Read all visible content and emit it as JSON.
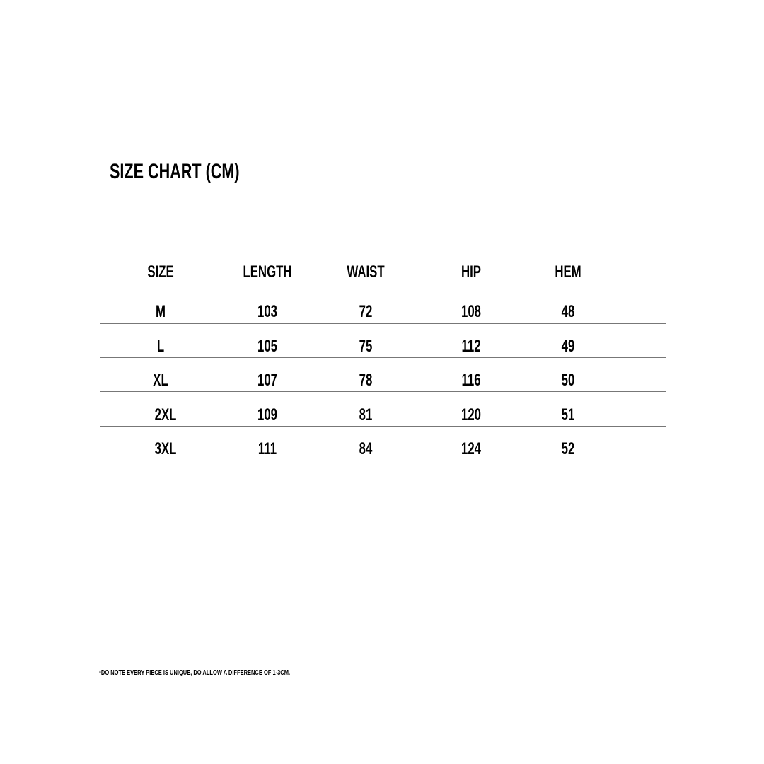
{
  "title": "SIZE CHART (CM)",
  "table": {
    "headers": [
      "SIZE",
      "LENGTH",
      "WAIST",
      "HIP",
      "HEM"
    ],
    "rows": [
      [
        "M",
        "103",
        "72",
        "108",
        "48"
      ],
      [
        "L",
        "105",
        "75",
        "112",
        "49"
      ],
      [
        "XL",
        "107",
        "78",
        "116",
        "50"
      ],
      [
        "2XL",
        "109",
        "81",
        "120",
        "51"
      ],
      [
        "3XL",
        "111",
        "84",
        "124",
        "52"
      ]
    ]
  },
  "footnote": "*DO NOTE EVERY PIECE IS UNIQUE, DO ALLOW A DIFFERENCE OF 1-3CM."
}
